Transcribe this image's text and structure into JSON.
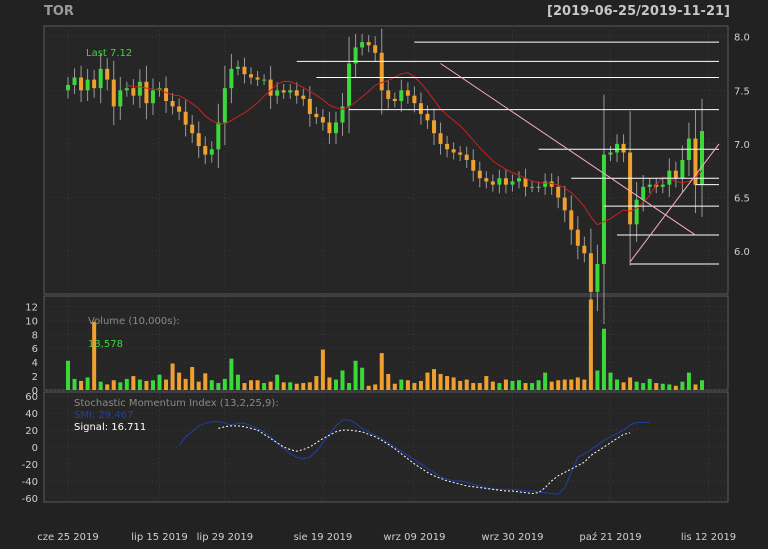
{
  "header": {
    "symbol": "TOR",
    "range": "[2019-06-25/2019-11-21]"
  },
  "colors": {
    "background": "#222222",
    "panel": "#262626",
    "grid": "#3a3a3a",
    "up": "#3ad83a",
    "down": "#f0a030",
    "ma": "#cc2222",
    "smi": "#1f3fa8",
    "signal": "#ffffff",
    "hline": "#ffffff",
    "trendline": "#f4b0c0"
  },
  "chart_data": [
    {
      "type": "candlestick",
      "panel": "price",
      "last_label": "Last 7.12",
      "ylim": [
        5.6,
        8.1
      ],
      "yticks": [
        "8.0",
        "7.5",
        "7.0",
        "6.5",
        "6.0"
      ],
      "ytick_values": [
        8.0,
        7.5,
        7.0,
        6.5,
        6.0
      ],
      "x_labels": [
        "cze 25 2019",
        "lip 15 2019",
        "lip 29 2019",
        "sie 19 2019",
        "wrz 09 2019",
        "wrz 30 2019",
        "paź 21 2019",
        "lis 12 2019"
      ],
      "x_label_index": [
        0,
        14,
        24,
        39,
        53,
        68,
        83,
        98
      ],
      "close": [
        7.55,
        7.62,
        7.5,
        7.6,
        7.52,
        7.7,
        7.6,
        7.35,
        7.5,
        7.52,
        7.45,
        7.58,
        7.38,
        7.5,
        7.52,
        7.4,
        7.35,
        7.3,
        7.18,
        7.1,
        6.98,
        6.9,
        6.95,
        7.2,
        7.52,
        7.7,
        7.72,
        7.65,
        7.62,
        7.6,
        7.6,
        7.45,
        7.5,
        7.48,
        7.5,
        7.45,
        7.42,
        7.28,
        7.25,
        7.2,
        7.1,
        7.2,
        7.35,
        7.75,
        7.9,
        7.95,
        7.92,
        7.85,
        7.5,
        7.42,
        7.4,
        7.5,
        7.45,
        7.38,
        7.28,
        7.22,
        7.1,
        7.0,
        6.95,
        6.92,
        6.9,
        6.85,
        6.75,
        6.68,
        6.65,
        6.62,
        6.68,
        6.62,
        6.65,
        6.68,
        6.6,
        6.6,
        6.6,
        6.65,
        6.6,
        6.5,
        6.38,
        6.2,
        6.05,
        5.98,
        5.62,
        5.88,
        6.9,
        6.92,
        7.0,
        6.92,
        6.25,
        6.48,
        6.6,
        6.62,
        6.6,
        6.62,
        6.75,
        6.68,
        6.85,
        7.05,
        6.62,
        7.12
      ],
      "series": [
        {
          "name": "MA",
          "kind": "line"
        }
      ]
    },
    {
      "type": "bar",
      "panel": "volume",
      "label": "Volume (10,000s):",
      "last_value": "13,578",
      "ylim": [
        0,
        13.5
      ],
      "yticks": [
        "12",
        "10",
        "8",
        "6",
        "4",
        "2",
        "0"
      ],
      "ytick_values": [
        12,
        10,
        8,
        6,
        4,
        2,
        0
      ],
      "values": [
        4.2,
        1.6,
        1.3,
        1.8,
        9.8,
        1.2,
        0.8,
        1.4,
        1.1,
        1.6,
        2.0,
        1.5,
        1.3,
        1.4,
        2.2,
        1.5,
        3.8,
        2.5,
        1.6,
        3.3,
        1.2,
        2.4,
        1.4,
        1.0,
        1.6,
        4.5,
        2.2,
        1.0,
        1.4,
        1.4,
        1.0,
        1.2,
        2.2,
        1.1,
        1.1,
        0.9,
        1.0,
        1.1,
        2.0,
        5.8,
        1.8,
        1.5,
        2.8,
        1.0,
        4.2,
        3.2,
        0.6,
        0.8,
        5.3,
        2.3,
        0.9,
        1.5,
        1.4,
        1.0,
        1.3,
        2.5,
        3.0,
        2.3,
        2.0,
        1.8,
        1.3,
        1.5,
        1.0,
        1.0,
        2.0,
        1.2,
        1.0,
        1.5,
        1.3,
        1.4,
        1.0,
        1.0,
        1.4,
        2.5,
        1.2,
        1.4,
        1.5,
        1.5,
        1.8,
        1.5,
        13.0,
        2.8,
        8.8,
        2.5,
        1.5,
        1.1,
        1.8,
        1.2,
        1.0,
        1.6,
        1.0,
        0.9,
        0.8,
        0.6,
        1.2,
        2.5,
        0.8,
        1.4
      ]
    },
    {
      "type": "line",
      "panel": "smi",
      "label": "Stochastic Momentum Index (13,2,25,9):",
      "smi_label": "SMI: 29.467",
      "signal_label": "Signal: 16.711",
      "ylim": [
        -65,
        65
      ],
      "yticks": [
        "60",
        "40",
        "20",
        "0",
        "-20",
        "-40",
        "-60"
      ],
      "ytick_values": [
        60,
        40,
        20,
        0,
        -20,
        -40,
        -60
      ],
      "series": [
        {
          "name": "SMI",
          "start_index": 17,
          "values": [
            2,
            12,
            18,
            25,
            28,
            30,
            30,
            28,
            26,
            28,
            28,
            25,
            22,
            18,
            12,
            5,
            -2,
            -8,
            -12,
            -14,
            -12,
            -5,
            5,
            15,
            25,
            32,
            32,
            28,
            22,
            18,
            14,
            10,
            5,
            0,
            -5,
            -10,
            -15,
            -20,
            -25,
            -30,
            -35,
            -38,
            -40,
            -40,
            -42,
            -44,
            -46,
            -48,
            -50,
            -50,
            -50,
            -50,
            -51,
            -52,
            -52,
            -53,
            -54,
            -55,
            -56,
            -48,
            -30,
            -12,
            -8,
            -3,
            2,
            8,
            12,
            16,
            20,
            26,
            29,
            29,
            29.467
          ]
        },
        {
          "name": "Signal",
          "start_index": 23,
          "values": [
            22,
            24,
            25,
            25,
            24,
            22,
            20,
            15,
            10,
            5,
            0,
            -3,
            -5,
            -3,
            0,
            5,
            10,
            14,
            18,
            20,
            20,
            19,
            18,
            15,
            12,
            8,
            3,
            -2,
            -8,
            -14,
            -20,
            -25,
            -30,
            -34,
            -37,
            -40,
            -42,
            -44,
            -46,
            -47,
            -48,
            -49,
            -50,
            -51,
            -52,
            -52,
            -53,
            -54,
            -55,
            -54,
            -48,
            -40,
            -34,
            -30,
            -26,
            -22,
            -18,
            -10,
            -5,
            0,
            5,
            10,
            15,
            16.711
          ]
        }
      ]
    }
  ],
  "overlays": {
    "hlines": [
      {
        "y": 7.95,
        "from": 53
      },
      {
        "y": 7.77,
        "from": 35
      },
      {
        "y": 7.62,
        "from": 38
      },
      {
        "y": 7.32,
        "from": 43
      },
      {
        "y": 6.95,
        "from": 72
      },
      {
        "y": 6.68,
        "from": 77
      },
      {
        "y": 6.62,
        "from": 96
      },
      {
        "y": 6.42,
        "from": 82
      },
      {
        "y": 6.15,
        "from": 84
      },
      {
        "y": 5.88,
        "from": 86
      }
    ],
    "trendlines": [
      {
        "x1": 57,
        "y1": 7.75,
        "x2": 96,
        "y2": 6.15
      },
      {
        "x1": 86,
        "y1": 5.9,
        "x2": 108,
        "y2": 7.0
      }
    ]
  }
}
